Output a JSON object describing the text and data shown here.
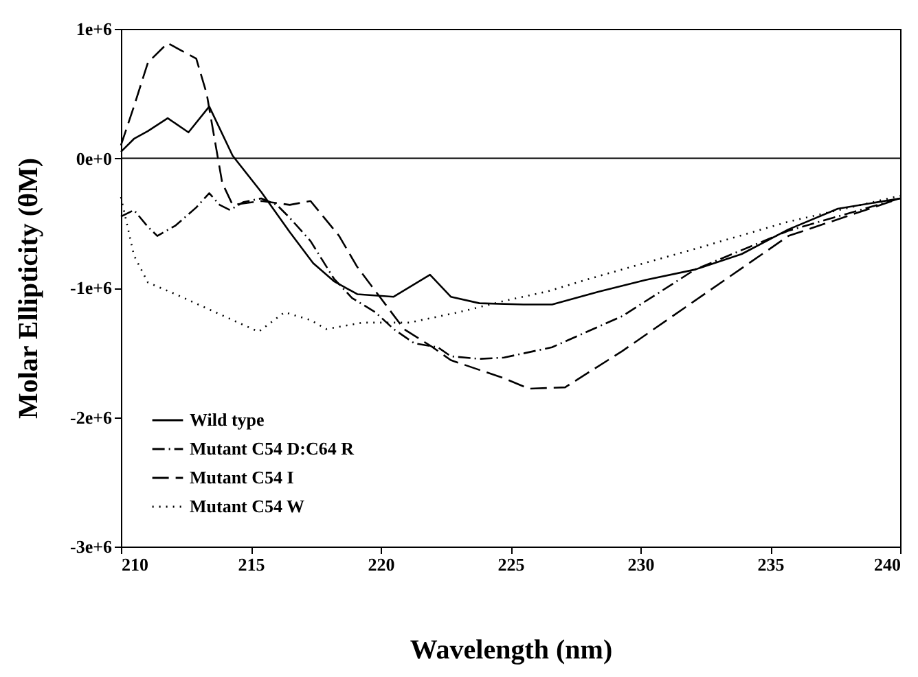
{
  "chart_data": {
    "type": "line",
    "xlabel": "Wavelength (nm)",
    "ylabel": "Molar Ellipticity (θM)",
    "xlim": [
      210,
      240
    ],
    "xticks": [
      210,
      215,
      220,
      225,
      230,
      235,
      240
    ],
    "ylim": [
      -3000000,
      1000000
    ],
    "yticks": [
      {
        "value": -3000000,
        "label": "-3e+6"
      },
      {
        "value": -2000000,
        "label": "-2e+6"
      },
      {
        "value": -1000000,
        "label": "-1e+6"
      },
      {
        "value": 0,
        "label": "0e+0"
      },
      {
        "value": 1000000,
        "label": "1e+6"
      }
    ],
    "grid": false,
    "legend": "bottom left",
    "marker": "none",
    "ref_lines": [
      {
        "axis": "y",
        "value": 0,
        "color": "#000000",
        "line_style": "solid"
      }
    ],
    "series": [
      {
        "name": "Wild type",
        "color": "#000000",
        "line_style": "solid",
        "x": [
          210,
          210.5,
          211.04,
          211.8,
          212.6,
          213.4,
          214.3,
          215.4,
          216.5,
          217.4,
          218.2,
          219.1,
          220.5,
          221.9,
          222.7,
          223.8,
          225.5,
          226.6,
          228.4,
          230.2,
          232.1,
          233.9,
          235.7,
          237.6,
          240
        ],
        "values": [
          50000,
          150000,
          210000,
          310000,
          200000,
          400000,
          20000,
          -260000,
          -570000,
          -810000,
          -950000,
          -1050000,
          -1070000,
          -900000,
          -1070000,
          -1120000,
          -1130000,
          -1130000,
          -1030000,
          -940000,
          -860000,
          -740000,
          -550000,
          -390000,
          -310000
        ]
      },
      {
        "name": "Mutant C54 D:C64 R",
        "color": "#000000",
        "line_style": "dashdot",
        "x": [
          210,
          210.5,
          211.04,
          211.4,
          212.1,
          212.9,
          213.4,
          213.8,
          214.2,
          214.7,
          215.4,
          216.0,
          216.5,
          217.3,
          218.2,
          218.9,
          219.8,
          220.5,
          221.3,
          222.2,
          222.7,
          223.8,
          224.75,
          226.6,
          229.3,
          232.1,
          235.7,
          240
        ],
        "values": [
          -450000,
          -400000,
          -530000,
          -600000,
          -520000,
          -380000,
          -270000,
          -360000,
          -400000,
          -340000,
          -310000,
          -360000,
          -460000,
          -640000,
          -930000,
          -1080000,
          -1190000,
          -1320000,
          -1430000,
          -1460000,
          -1530000,
          -1550000,
          -1540000,
          -1460000,
          -1220000,
          -860000,
          -560000,
          -310000
        ]
      },
      {
        "name": "Mutant C54 I",
        "color": "#000000",
        "line_style": "dashed",
        "x": [
          210,
          210.5,
          211.04,
          211.8,
          212.9,
          213.3,
          213.9,
          214.3,
          215.4,
          216.5,
          217.3,
          218.4,
          219.1,
          220.0,
          220.9,
          222.0,
          222.7,
          224.75,
          225.7,
          227.1,
          229.3,
          232.1,
          235.7,
          240
        ],
        "values": [
          100000,
          400000,
          740000,
          890000,
          770000,
          500000,
          -190000,
          -360000,
          -330000,
          -360000,
          -330000,
          -600000,
          -840000,
          -1080000,
          -1320000,
          -1460000,
          -1560000,
          -1700000,
          -1780000,
          -1770000,
          -1490000,
          -1100000,
          -600000,
          -310000
        ]
      },
      {
        "name": "Mutant C54 W",
        "color": "#000000",
        "line_style": "dotted",
        "x": [
          210,
          210.5,
          211.04,
          212.1,
          213.2,
          214.3,
          215.3,
          216.3,
          217.3,
          217.9,
          219.3,
          221.1,
          223.0,
          224.8,
          226.4,
          228.4,
          232.1,
          235.7,
          240
        ],
        "values": [
          -300000,
          -750000,
          -960000,
          -1050000,
          -1150000,
          -1250000,
          -1340000,
          -1190000,
          -1250000,
          -1320000,
          -1270000,
          -1270000,
          -1190000,
          -1100000,
          -1030000,
          -910000,
          -700000,
          -490000,
          -290000
        ]
      }
    ]
  }
}
